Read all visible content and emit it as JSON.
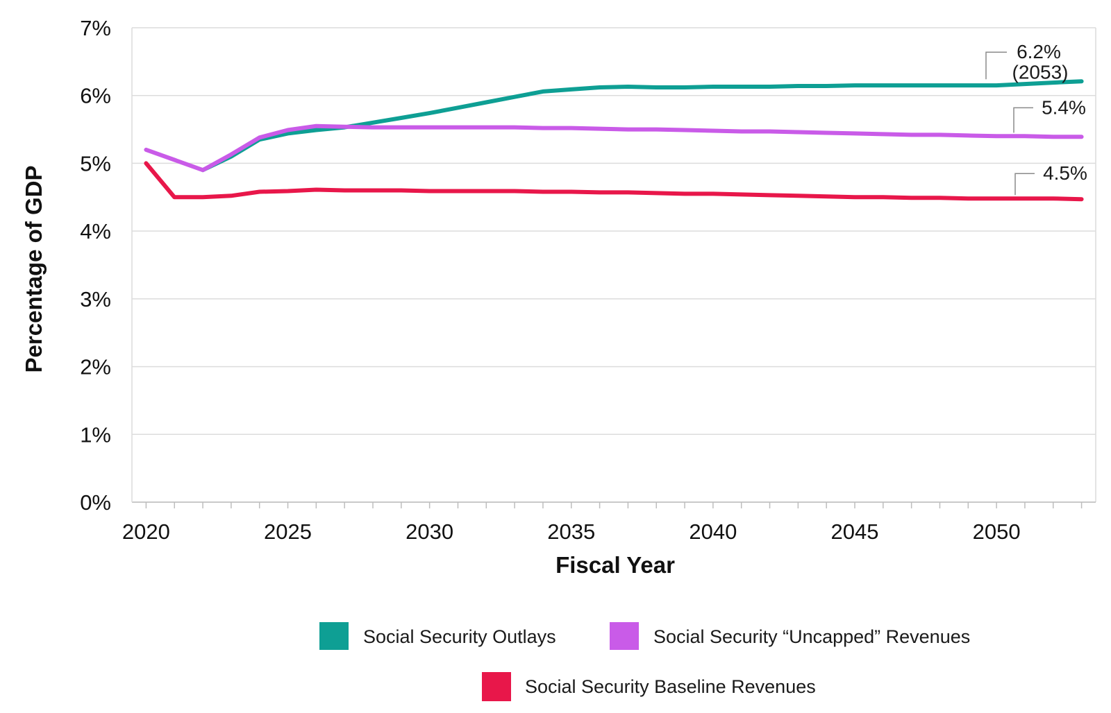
{
  "chart_data": {
    "type": "line",
    "title": "",
    "xlabel": "Fiscal Year",
    "ylabel": "Percentage of GDP",
    "xlim": [
      2019.5,
      2053.5
    ],
    "ylim": [
      0,
      7
    ],
    "y_tick_labels": [
      "0%",
      "1%",
      "2%",
      "3%",
      "4%",
      "5%",
      "6%",
      "7%"
    ],
    "x_tick_labels": [
      "2020",
      "2025",
      "2030",
      "2035",
      "2040",
      "2045",
      "2050"
    ],
    "grid": true,
    "legend_position": "bottom",
    "x": [
      2020,
      2021,
      2022,
      2023,
      2024,
      2025,
      2026,
      2027,
      2028,
      2029,
      2030,
      2031,
      2032,
      2033,
      2034,
      2035,
      2036,
      2037,
      2038,
      2039,
      2040,
      2041,
      2042,
      2043,
      2044,
      2045,
      2046,
      2047,
      2048,
      2049,
      2050,
      2051,
      2052,
      2053
    ],
    "series": [
      {
        "name": "Social Security Outlays",
        "color": "#0e9f94",
        "values": [
          null,
          null,
          4.9,
          5.1,
          5.35,
          5.44,
          5.49,
          5.53,
          5.6,
          5.67,
          5.74,
          5.82,
          5.9,
          5.98,
          6.06,
          6.09,
          6.12,
          6.13,
          6.12,
          6.12,
          6.13,
          6.13,
          6.13,
          6.14,
          6.14,
          6.15,
          6.15,
          6.15,
          6.15,
          6.15,
          6.15,
          6.17,
          6.19,
          6.21
        ]
      },
      {
        "name": "Social Security “Uncapped” Revenues",
        "color": "#c95be8",
        "values": [
          5.2,
          5.05,
          4.9,
          5.13,
          5.38,
          5.49,
          5.55,
          5.54,
          5.53,
          5.53,
          5.53,
          5.53,
          5.53,
          5.53,
          5.52,
          5.52,
          5.51,
          5.5,
          5.5,
          5.49,
          5.48,
          5.47,
          5.47,
          5.46,
          5.45,
          5.44,
          5.43,
          5.42,
          5.42,
          5.41,
          5.4,
          5.4,
          5.39,
          5.39
        ]
      },
      {
        "name": "Social Security Baseline Revenues",
        "color": "#e8174a",
        "values": [
          5.0,
          4.5,
          4.5,
          4.52,
          4.58,
          4.59,
          4.61,
          4.6,
          4.6,
          4.6,
          4.59,
          4.59,
          4.59,
          4.59,
          4.58,
          4.58,
          4.57,
          4.57,
          4.56,
          4.55,
          4.55,
          4.54,
          4.53,
          4.52,
          4.51,
          4.5,
          4.5,
          4.49,
          4.49,
          4.48,
          4.48,
          4.48,
          4.48,
          4.47
        ]
      }
    ],
    "annotations": [
      {
        "series": "Social Security Outlays",
        "line1": "6.2%",
        "line2": "(2053)"
      },
      {
        "series": "Social Security “Uncapped” Revenues",
        "line1": "5.4%"
      },
      {
        "series": "Social Security Baseline Revenues",
        "line1": "4.5%"
      }
    ]
  }
}
